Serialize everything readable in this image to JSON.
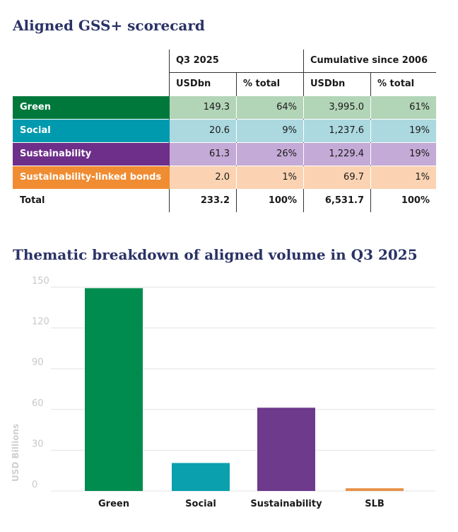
{
  "scorecard": {
    "title": "Aligned GSS+ scorecard",
    "group_headers": [
      "Q3 2025",
      "Cumulative since 2006"
    ],
    "sub_headers": [
      "USDbn",
      "% total",
      "USDbn",
      "% total"
    ],
    "rows": [
      {
        "label": "Green",
        "q3_usdbn": "149.3",
        "q3_pct": "64%",
        "cum_usdbn": "3,995.0",
        "cum_pct": "61%",
        "label_color": "#00783c",
        "cell_color": "#b2d4b7"
      },
      {
        "label": "Social",
        "q3_usdbn": "20.6",
        "q3_pct": "9%",
        "cum_usdbn": "1,237.6",
        "cum_pct": "19%",
        "label_color": "#009aaf",
        "cell_color": "#acd9e0"
      },
      {
        "label": "Sustainability",
        "q3_usdbn": "61.3",
        "q3_pct": "26%",
        "cum_usdbn": "1,229.4",
        "cum_pct": "19%",
        "label_color": "#6e2f8a",
        "cell_color": "#c4aad6"
      },
      {
        "label": "Sustainability-linked bonds",
        "q3_usdbn": "2.0",
        "q3_pct": "1%",
        "cum_usdbn": "69.7",
        "cum_pct": "1%",
        "label_color": "#f08c32",
        "cell_color": "#fbd3b2"
      }
    ],
    "total": {
      "label": "Total",
      "q3_usdbn": "233.2",
      "q3_pct": "100%",
      "cum_usdbn": "6,531.7",
      "cum_pct": "100%"
    }
  },
  "chart_data": {
    "type": "bar",
    "title": "Thematic breakdown of aligned volume in Q3 2025",
    "categories": [
      "Green",
      "Social",
      "Sustainability",
      "SLB"
    ],
    "values": [
      149.3,
      20.6,
      61.3,
      2.0
    ],
    "colors": [
      "#008c4f",
      "#0aa0ae",
      "#6e3a8c",
      "#e8914a"
    ],
    "ylabel": "USD Billions",
    "xlabel": "",
    "ylim": [
      0,
      150
    ],
    "yticks": [
      0,
      30,
      60,
      90,
      120,
      150
    ],
    "grid": true
  }
}
